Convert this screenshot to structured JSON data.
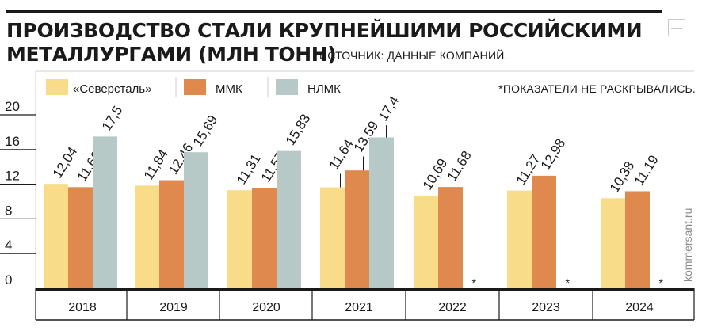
{
  "header": {
    "title_line1": "ПРОИЗВОДСТВО СТАЛИ КРУПНЕЙШИМИ РОССИЙСКИМИ",
    "title_line2": "МЕТАЛЛУРГАМИ (МЛН ТОНН)",
    "source": "ИСТОЧНИК: ДАННЫЕ КОМПАНИЙ.",
    "watermark": "kommersant.ru",
    "icon": "expand-icon"
  },
  "chart_data": {
    "type": "bar",
    "title": "ПРОИЗВОДСТВО СТАЛИ КРУПНЕЙШИМИ РОССИЙСКИМИ МЕТАЛЛУРГАМИ (МЛН ТОНН)",
    "categories": [
      "2018",
      "2019",
      "2020",
      "2021",
      "2022",
      "2023",
      "2024"
    ],
    "series": [
      {
        "name": "«Северсталь»",
        "color": "#f8dc8a",
        "values": [
          12.04,
          11.84,
          11.31,
          11.64,
          10.69,
          11.27,
          10.38
        ],
        "labels": [
          "12,04",
          "11,84",
          "11,31",
          "11,64",
          "10,69",
          "11,27",
          "10,38"
        ]
      },
      {
        "name": "ММК",
        "color": "#e0894f",
        "values": [
          11.66,
          12.46,
          11.57,
          13.59,
          11.68,
          12.98,
          11.19
        ],
        "labels": [
          "11,66",
          "12,46",
          "11,57",
          "13,59",
          "11,68",
          "12,98",
          "11,19"
        ]
      },
      {
        "name": "НЛМК",
        "color": "#b6c9c6",
        "values": [
          17.5,
          15.69,
          15.83,
          17.4,
          null,
          null,
          null
        ],
        "labels": [
          "17,5",
          "15,69",
          "15,83",
          "17,4",
          "*",
          "*",
          "*"
        ]
      }
    ],
    "yticks": [
      "0",
      "4",
      "8",
      "12",
      "16",
      "20"
    ],
    "ylim": [
      0,
      20
    ],
    "note": "*ПОКАЗАТЕЛИ НЕ РАСКРЫВАЛИСЬ.",
    "legend_position": "top",
    "grid": true,
    "xlabel": "",
    "ylabel": ""
  }
}
